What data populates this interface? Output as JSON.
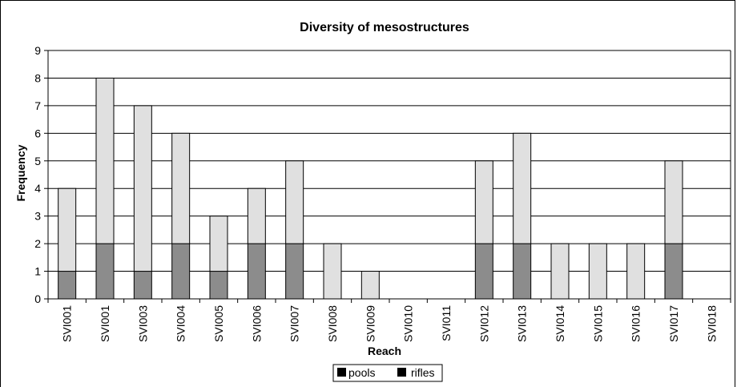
{
  "chart_data": {
    "type": "bar",
    "stacked": true,
    "title": "Diversity of mesostructures",
    "xlabel": "Reach",
    "ylabel": "Frequency",
    "ylim": [
      0,
      9
    ],
    "yticks": [
      0,
      1,
      2,
      3,
      4,
      5,
      6,
      7,
      8,
      9
    ],
    "grid": true,
    "legend_position": "bottom",
    "categories": [
      "SVI001",
      "SVI001",
      "SVI003",
      "SVI004",
      "SVI005",
      "SVI006",
      "SVI007",
      "SVI008",
      "SVI009",
      "SVI010",
      "SVI011",
      "SVI012",
      "SVI013",
      "SVI014",
      "SVI015",
      "SVI016",
      "SVI017",
      "SVI018"
    ],
    "series": [
      {
        "name": "pools",
        "color": "#8c8c8c",
        "values": [
          1,
          2,
          1,
          2,
          1,
          2,
          2,
          0,
          0,
          0,
          0,
          2,
          2,
          0,
          0,
          0,
          2,
          0
        ]
      },
      {
        "name": "rifles",
        "color": "#e0e0e0",
        "values": [
          3,
          6,
          6,
          4,
          2,
          2,
          3,
          2,
          1,
          0,
          0,
          3,
          4,
          2,
          2,
          2,
          3,
          0
        ]
      }
    ],
    "legend_swatch_color": "#000000"
  }
}
